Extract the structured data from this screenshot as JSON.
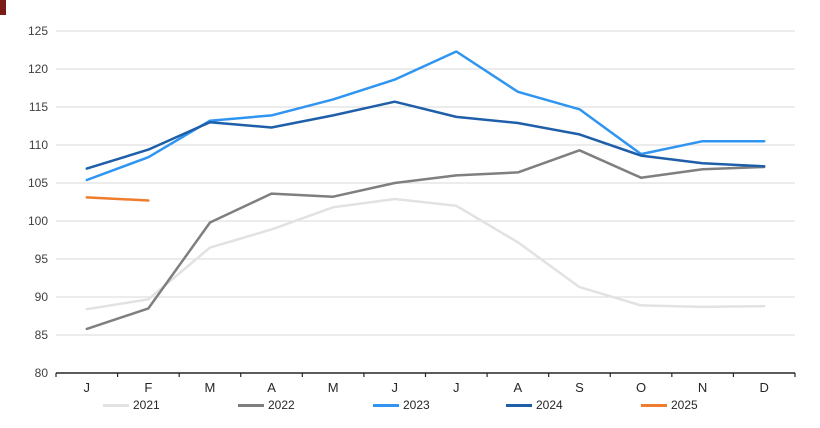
{
  "chart_data": {
    "type": "line",
    "title": "",
    "xlabel": "",
    "ylabel": "",
    "x_categories": [
      "J",
      "F",
      "M",
      "A",
      "M",
      "J",
      "J",
      "A",
      "S",
      "O",
      "N",
      "D"
    ],
    "y_ticks": [
      80,
      85,
      90,
      95,
      100,
      105,
      110,
      115,
      120,
      125
    ],
    "ylim": [
      80,
      125
    ],
    "grid": true,
    "legend_position": "bottom",
    "series": [
      {
        "name": "2021",
        "color": "#e2e2e2",
        "values": [
          88.4,
          89.7,
          96.5,
          98.9,
          101.8,
          102.9,
          102.0,
          97.2,
          91.3,
          88.9,
          88.7,
          88.8
        ]
      },
      {
        "name": "2022",
        "color": "#7f7f7f",
        "values": [
          85.8,
          88.5,
          99.8,
          103.6,
          103.2,
          105.0,
          106.0,
          106.4,
          109.3,
          105.7,
          106.8,
          107.1
        ]
      },
      {
        "name": "2023",
        "color": "#3095f0",
        "values": [
          105.4,
          108.4,
          113.2,
          113.9,
          116.0,
          118.6,
          122.3,
          117.0,
          114.7,
          108.8,
          110.5,
          110.5
        ]
      },
      {
        "name": "2024",
        "color": "#1f5fa9",
        "values": [
          106.9,
          109.4,
          113.0,
          112.3,
          113.9,
          115.7,
          113.7,
          112.9,
          111.4,
          108.6,
          107.6,
          107.2
        ]
      },
      {
        "name": "2025",
        "color": "#ee7d2e",
        "values": [
          103.1,
          102.7,
          null,
          null,
          null,
          null,
          null,
          null,
          null,
          null,
          null,
          null
        ]
      }
    ],
    "style": {
      "gridline_color": "#d9d9d9",
      "axis_color": "#262626",
      "tick_label_color": "#404040",
      "background": "#ffffff"
    }
  },
  "artifact": {
    "corner_mark_color": "#7b1b17"
  }
}
